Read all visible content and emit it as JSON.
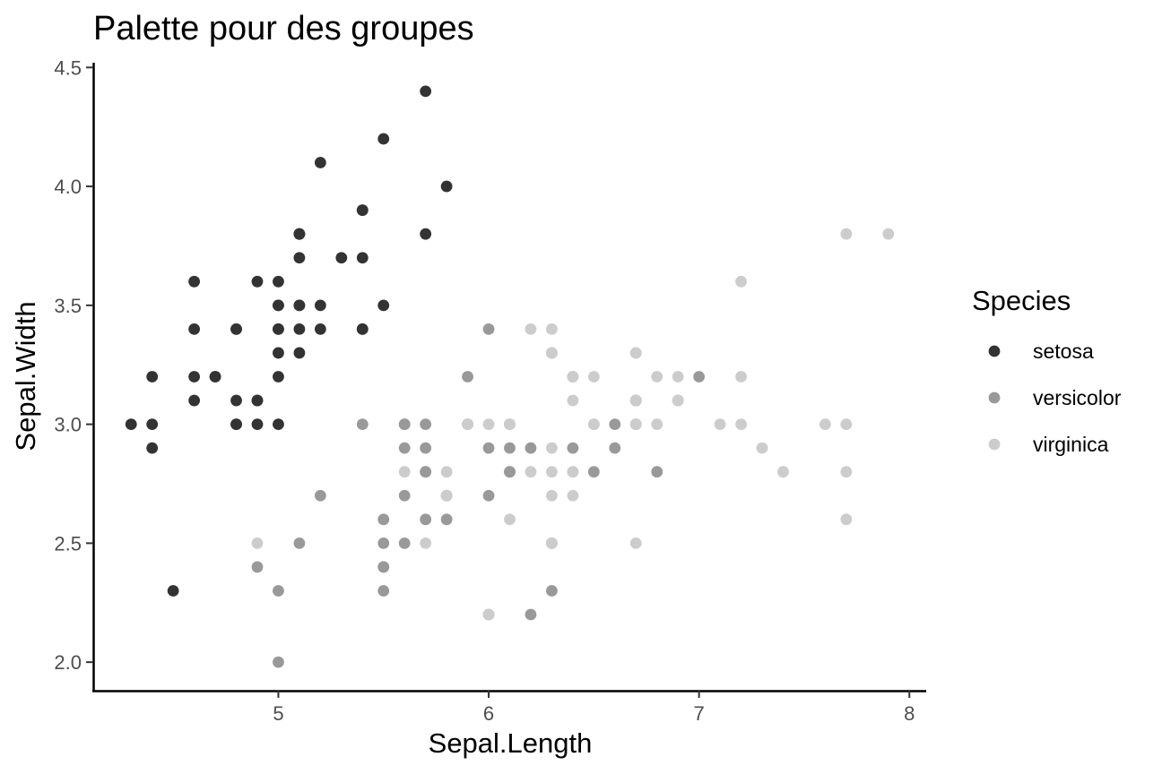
{
  "chart_data": {
    "type": "scatter",
    "title": "Palette pour des groupes",
    "xlabel": "Sepal.Length",
    "ylabel": "Sepal.Width",
    "xlim": [
      4.12,
      8.08
    ],
    "ylim": [
      1.88,
      4.52
    ],
    "x_ticks": [
      "5",
      "6",
      "7",
      "8"
    ],
    "y_ticks": [
      "2.0",
      "2.5",
      "3.0",
      "3.5",
      "4.0",
      "4.5"
    ],
    "grid": false,
    "legend": {
      "title": "Species",
      "position": "right"
    },
    "series": [
      {
        "name": "setosa",
        "color": "#333333",
        "points": [
          [
            5.1,
            3.5
          ],
          [
            4.9,
            3.0
          ],
          [
            4.7,
            3.2
          ],
          [
            4.6,
            3.1
          ],
          [
            5.0,
            3.6
          ],
          [
            5.4,
            3.9
          ],
          [
            4.6,
            3.4
          ],
          [
            5.0,
            3.4
          ],
          [
            4.4,
            2.9
          ],
          [
            4.9,
            3.1
          ],
          [
            5.4,
            3.7
          ],
          [
            4.8,
            3.4
          ],
          [
            4.8,
            3.0
          ],
          [
            4.3,
            3.0
          ],
          [
            5.8,
            4.0
          ],
          [
            5.7,
            4.4
          ],
          [
            5.4,
            3.9
          ],
          [
            5.1,
            3.5
          ],
          [
            5.7,
            3.8
          ],
          [
            5.1,
            3.8
          ],
          [
            5.4,
            3.4
          ],
          [
            5.1,
            3.7
          ],
          [
            4.6,
            3.6
          ],
          [
            5.1,
            3.3
          ],
          [
            4.8,
            3.4
          ],
          [
            5.0,
            3.0
          ],
          [
            5.0,
            3.4
          ],
          [
            5.2,
            3.5
          ],
          [
            5.2,
            3.4
          ],
          [
            4.7,
            3.2
          ],
          [
            4.8,
            3.1
          ],
          [
            5.4,
            3.4
          ],
          [
            5.2,
            4.1
          ],
          [
            5.5,
            4.2
          ],
          [
            4.9,
            3.1
          ],
          [
            5.0,
            3.2
          ],
          [
            5.5,
            3.5
          ],
          [
            4.9,
            3.6
          ],
          [
            4.4,
            3.0
          ],
          [
            5.1,
            3.4
          ],
          [
            5.0,
            3.5
          ],
          [
            4.5,
            2.3
          ],
          [
            4.4,
            3.2
          ],
          [
            5.0,
            3.5
          ],
          [
            5.1,
            3.8
          ],
          [
            4.8,
            3.0
          ],
          [
            5.1,
            3.8
          ],
          [
            4.6,
            3.2
          ],
          [
            5.3,
            3.7
          ],
          [
            5.0,
            3.3
          ]
        ]
      },
      {
        "name": "versicolor",
        "color": "#999999",
        "points": [
          [
            7.0,
            3.2
          ],
          [
            6.4,
            3.2
          ],
          [
            6.9,
            3.1
          ],
          [
            5.5,
            2.3
          ],
          [
            6.5,
            2.8
          ],
          [
            5.7,
            2.8
          ],
          [
            6.3,
            3.3
          ],
          [
            4.9,
            2.4
          ],
          [
            6.6,
            2.9
          ],
          [
            5.2,
            2.7
          ],
          [
            5.0,
            2.0
          ],
          [
            5.9,
            3.0
          ],
          [
            6.0,
            2.2
          ],
          [
            6.1,
            2.9
          ],
          [
            5.6,
            2.9
          ],
          [
            6.7,
            3.1
          ],
          [
            5.6,
            3.0
          ],
          [
            5.8,
            2.7
          ],
          [
            6.2,
            2.2
          ],
          [
            5.6,
            2.5
          ],
          [
            5.9,
            3.2
          ],
          [
            6.1,
            2.8
          ],
          [
            6.3,
            2.5
          ],
          [
            6.1,
            2.8
          ],
          [
            6.4,
            2.9
          ],
          [
            6.6,
            3.0
          ],
          [
            6.8,
            2.8
          ],
          [
            6.7,
            3.0
          ],
          [
            6.0,
            2.9
          ],
          [
            5.7,
            2.6
          ],
          [
            5.5,
            2.4
          ],
          [
            5.5,
            2.4
          ],
          [
            5.8,
            2.7
          ],
          [
            6.0,
            2.7
          ],
          [
            5.4,
            3.0
          ],
          [
            6.0,
            3.4
          ],
          [
            6.7,
            3.1
          ],
          [
            6.3,
            2.3
          ],
          [
            5.6,
            3.0
          ],
          [
            5.5,
            2.5
          ],
          [
            5.5,
            2.6
          ],
          [
            6.1,
            3.0
          ],
          [
            5.8,
            2.6
          ],
          [
            5.0,
            2.3
          ],
          [
            5.6,
            2.7
          ],
          [
            5.7,
            3.0
          ],
          [
            5.7,
            2.9
          ],
          [
            6.2,
            2.9
          ],
          [
            5.1,
            2.5
          ],
          [
            5.7,
            2.8
          ]
        ]
      },
      {
        "name": "virginica",
        "color": "#cccccc",
        "points": [
          [
            6.3,
            3.3
          ],
          [
            5.8,
            2.7
          ],
          [
            7.1,
            3.0
          ],
          [
            6.3,
            2.9
          ],
          [
            6.5,
            3.0
          ],
          [
            7.6,
            3.0
          ],
          [
            4.9,
            2.5
          ],
          [
            7.3,
            2.9
          ],
          [
            6.7,
            2.5
          ],
          [
            7.2,
            3.6
          ],
          [
            6.5,
            3.2
          ],
          [
            6.4,
            2.7
          ],
          [
            6.8,
            3.0
          ],
          [
            5.7,
            2.5
          ],
          [
            5.8,
            2.8
          ],
          [
            6.4,
            3.2
          ],
          [
            6.5,
            3.0
          ],
          [
            7.7,
            3.8
          ],
          [
            7.7,
            2.6
          ],
          [
            6.0,
            2.2
          ],
          [
            6.9,
            3.2
          ],
          [
            5.6,
            2.8
          ],
          [
            7.7,
            2.8
          ],
          [
            6.3,
            2.7
          ],
          [
            6.7,
            3.3
          ],
          [
            7.2,
            3.2
          ],
          [
            6.2,
            2.8
          ],
          [
            6.1,
            3.0
          ],
          [
            6.4,
            2.8
          ],
          [
            7.2,
            3.0
          ],
          [
            7.4,
            2.8
          ],
          [
            7.9,
            3.8
          ],
          [
            6.4,
            2.8
          ],
          [
            6.3,
            2.8
          ],
          [
            6.1,
            2.6
          ],
          [
            7.7,
            3.0
          ],
          [
            6.3,
            3.4
          ],
          [
            6.4,
            3.1
          ],
          [
            6.0,
            3.0
          ],
          [
            6.9,
            3.1
          ],
          [
            6.7,
            3.1
          ],
          [
            6.9,
            3.1
          ],
          [
            5.8,
            2.7
          ],
          [
            6.8,
            3.2
          ],
          [
            6.7,
            3.3
          ],
          [
            6.7,
            3.0
          ],
          [
            6.3,
            2.5
          ],
          [
            6.5,
            3.0
          ],
          [
            6.2,
            3.4
          ],
          [
            5.9,
            3.0
          ]
        ]
      }
    ]
  }
}
